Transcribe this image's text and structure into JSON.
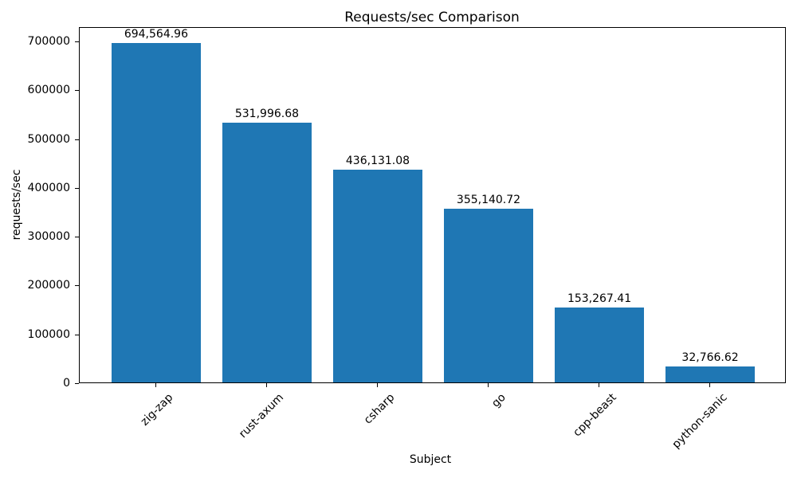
{
  "chart_data": {
    "type": "bar",
    "title": "Requests/sec Comparison",
    "xlabel": "Subject",
    "ylabel": "requests/sec",
    "categories": [
      "zig-zap",
      "rust-axum",
      "csharp",
      "go",
      "cpp-beast",
      "python-sanic"
    ],
    "values": [
      694564.96,
      531996.68,
      436131.08,
      355140.72,
      153267.41,
      32766.62
    ],
    "bar_labels": [
      "694,564.96",
      "531,996.68",
      "436,131.08",
      "355,140.72",
      "153,267.41",
      "32,766.62"
    ],
    "bar_color": "#1f77b4",
    "text_color": "#000000",
    "ylim": [
      0,
      729293
    ],
    "yticks": [
      0,
      100000,
      200000,
      300000,
      400000,
      500000,
      600000,
      700000
    ],
    "ytick_labels": [
      "0",
      "100000",
      "200000",
      "300000",
      "400000",
      "500000",
      "600000",
      "700000"
    ],
    "x_tick_rotation": 45,
    "grid": false,
    "legend": null
  }
}
